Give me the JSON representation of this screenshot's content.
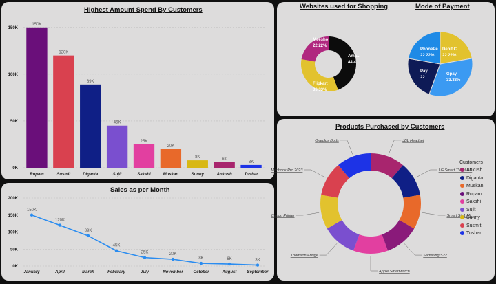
{
  "panels": {
    "spend_title": "Highest Amount Spend By Customers",
    "sales_title": "Sales as per Month",
    "websites_title": "Websites used for Shopping",
    "payment_title": "Mode of Payment",
    "products_title": "Products Purchased by Customers"
  },
  "colors": {
    "Rupam": "#6a0f7a",
    "Susmit": "#d9414f",
    "Diganta": "#0f1f86",
    "Sujit": "#7a4fcf",
    "Sakshi": "#e23fa0",
    "Muskan": "#e8692a",
    "Sunny": "#d8b814",
    "Ankush": "#a8256e",
    "Tushar": "#1d33e6",
    "line": "#2a8cf0"
  },
  "chart_data": [
    {
      "type": "bar",
      "title": "Highest Amount Spend By Customers",
      "categories": [
        "Rupam",
        "Susmit",
        "Diganta",
        "Sujit",
        "Sakshi",
        "Muskan",
        "Sunny",
        "Ankush",
        "Tushar"
      ],
      "values": [
        150000,
        120000,
        89000,
        45000,
        25000,
        20000,
        8000,
        6000,
        3000
      ],
      "data_labels": [
        "150K",
        "120K",
        "89K",
        "45K",
        "25K",
        "20K",
        "8K",
        "6K",
        "3K"
      ],
      "yticks": [
        0,
        50000,
        100000,
        150000
      ],
      "ytick_labels": [
        "0K",
        "50K",
        "100K",
        "150K"
      ],
      "ylim": [
        0,
        155000
      ]
    },
    {
      "type": "line",
      "title": "Sales as per Month",
      "categories": [
        "January",
        "April",
        "March",
        "February",
        "July",
        "November",
        "October",
        "August",
        "September"
      ],
      "values": [
        150000,
        120000,
        89000,
        45000,
        25000,
        20000,
        8000,
        6000,
        3000
      ],
      "data_labels": [
        "150K",
        "120K",
        "89K",
        "45K",
        "25K",
        "20K",
        "8K",
        "6K",
        "3K"
      ],
      "yticks": [
        0,
        50000,
        100000,
        150000,
        200000
      ],
      "ytick_labels": [
        "0K",
        "50K",
        "100K",
        "150K",
        "200K"
      ],
      "ylim": [
        0,
        200000
      ]
    },
    {
      "type": "pie",
      "title": "Websites used for Shopping",
      "slices": [
        {
          "label": "Amazon",
          "display": "Ama...",
          "pct_label": "44.4...",
          "value": 44.44,
          "color": "#0c0c0c"
        },
        {
          "label": "Flipkart",
          "display": "Flipkart",
          "pct_label": "33.33%",
          "value": 33.33,
          "color": "#e2c22e"
        },
        {
          "label": "Meesho",
          "display": "Meesho",
          "pct_label": "22.22%",
          "value": 22.22,
          "color": "#b0277f"
        }
      ]
    },
    {
      "type": "pie",
      "title": "Mode of Payment",
      "slices": [
        {
          "label": "Debit Card",
          "display": "Debit C...",
          "pct_label": "22.22%",
          "value": 22.22,
          "color": "#e2c22e"
        },
        {
          "label": "Gpay",
          "display": "Gpay",
          "pct_label": "33.33%",
          "value": 33.33,
          "color": "#3b9af2"
        },
        {
          "label": "Paytm",
          "display": "Pay...",
          "pct_label": "22....",
          "value": 22.22,
          "color": "#0e1a56"
        },
        {
          "label": "PhonePe",
          "display": "PhonePe",
          "pct_label": "22.22%",
          "value": 22.22,
          "color": "#1e8ae6"
        }
      ]
    },
    {
      "type": "pie",
      "title": "Products Purchased by Customers",
      "slices": [
        {
          "label": "JBL Headset",
          "value": 1,
          "color": "#a8256e"
        },
        {
          "label": "LG Smart TV OLED",
          "value": 1,
          "color": "#0f1f86"
        },
        {
          "label": "Smart Sin1 Mi...",
          "value": 1,
          "color": "#e8692a"
        },
        {
          "label": "Samsung S22",
          "value": 1,
          "color": "#8a1a7a"
        },
        {
          "label": "Apple Smartwatch",
          "value": 1,
          "color": "#e23fa0"
        },
        {
          "label": "Thomson Fridge",
          "value": 1,
          "color": "#7a4fcf"
        },
        {
          "label": "Canon Printer",
          "value": 1,
          "color": "#e2c22e"
        },
        {
          "label": "Macbook Pro 2023",
          "value": 1,
          "color": "#d9414f"
        },
        {
          "label": "Oneplus Buds",
          "value": 1,
          "color": "#1d33e6"
        }
      ],
      "legend_title": "Customers",
      "legend": [
        "Ankush",
        "Diganta",
        "Muskan",
        "Rupam",
        "Sakshi",
        "Sujit",
        "Sunny",
        "Susmit",
        "Tushar"
      ]
    }
  ]
}
